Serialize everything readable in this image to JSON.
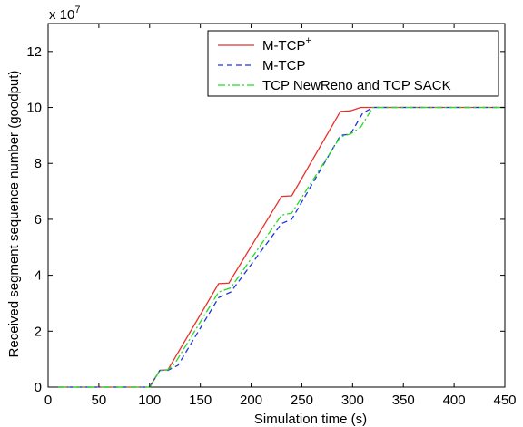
{
  "chart_data": {
    "type": "line",
    "title": "",
    "xlabel": "Simulation time (s)",
    "ylabel": "Received segment sequence number (goodput)",
    "y_multiplier_label": "x 10",
    "y_multiplier_exponent": "7",
    "xlim": [
      0,
      450
    ],
    "ylim": [
      0,
      13
    ],
    "x_ticks": [
      0,
      50,
      100,
      150,
      200,
      250,
      300,
      350,
      400,
      450
    ],
    "y_ticks": [
      0,
      2,
      4,
      6,
      8,
      10,
      12
    ],
    "grid": false,
    "legend_position": "top-right",
    "series": [
      {
        "name": "M-TCP",
        "name_superscript": "+",
        "color": "#e8302a",
        "dash": "solid",
        "x": [
          10,
          100,
          110,
          118,
          168,
          178,
          230,
          240,
          288,
          298,
          308,
          450
        ],
        "y": [
          0,
          0,
          0.6,
          0.62,
          3.7,
          3.72,
          6.82,
          6.84,
          9.86,
          9.88,
          10,
          10
        ]
      },
      {
        "name": "M-TCP",
        "name_superscript": "",
        "color": "#2233e0",
        "dash": "dashed",
        "x": [
          10,
          100,
          110,
          118,
          128,
          168,
          180,
          230,
          240,
          288,
          298,
          310,
          320,
          450
        ],
        "y": [
          0,
          0,
          0.6,
          0.6,
          0.78,
          3.2,
          3.4,
          5.85,
          6.0,
          9.0,
          9.05,
          9.8,
          10,
          10
        ]
      },
      {
        "name": "TCP NewReno and TCP SACK",
        "name_superscript": "",
        "color": "#22dd22",
        "dash": "dashdot",
        "x": [
          10,
          100,
          110,
          118,
          125,
          168,
          180,
          230,
          240,
          288,
          298,
          308,
          320,
          450
        ],
        "y": [
          0,
          0,
          0.6,
          0.62,
          0.85,
          3.4,
          3.55,
          6.15,
          6.22,
          8.95,
          9.05,
          9.3,
          10,
          10
        ]
      }
    ]
  }
}
